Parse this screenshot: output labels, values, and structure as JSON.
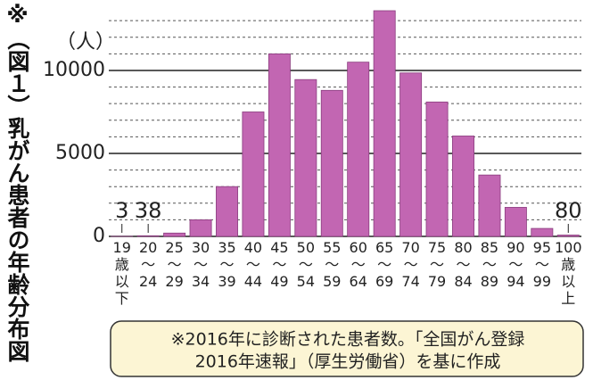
{
  "chart_data": {
    "type": "bar",
    "title": "※（図１）乳がん患者の年齢分布図",
    "y_unit": "（人）",
    "categories": [
      "19\n歳\n以\n下",
      "20\n〜\n24",
      "25\n〜\n29",
      "30\n〜\n34",
      "35\n〜\n39",
      "40\n〜\n44",
      "45\n〜\n49",
      "50\n〜\n54",
      "55\n〜\n59",
      "60\n〜\n64",
      "65\n〜\n69",
      "70\n〜\n74",
      "75\n〜\n79",
      "80\n〜\n84",
      "85\n〜\n89",
      "90\n〜\n94",
      "95\n〜\n99",
      "100\n歳\n以\n上"
    ],
    "values": [
      3,
      38,
      200,
      1000,
      3000,
      7500,
      11000,
      9450,
      8800,
      10500,
      13600,
      9850,
      8100,
      6050,
      3700,
      1750,
      480,
      80
    ],
    "value_labels": [
      "3",
      "38",
      null,
      null,
      null,
      null,
      null,
      null,
      null,
      null,
      null,
      null,
      null,
      null,
      null,
      null,
      null,
      "80"
    ],
    "color": "#c266b2",
    "ylim": [
      0,
      13600
    ],
    "yticks": [
      0,
      5000,
      10000
    ],
    "minor_yticks": [
      1000,
      2000,
      3000,
      4000,
      6000,
      7000,
      8000,
      9000,
      11000,
      12000,
      13000
    ],
    "grid": true,
    "note": [
      "※2016年に診断された患者数。「全国がん登録",
      "2016年速報」（厚生労働省）を基に作成"
    ]
  }
}
